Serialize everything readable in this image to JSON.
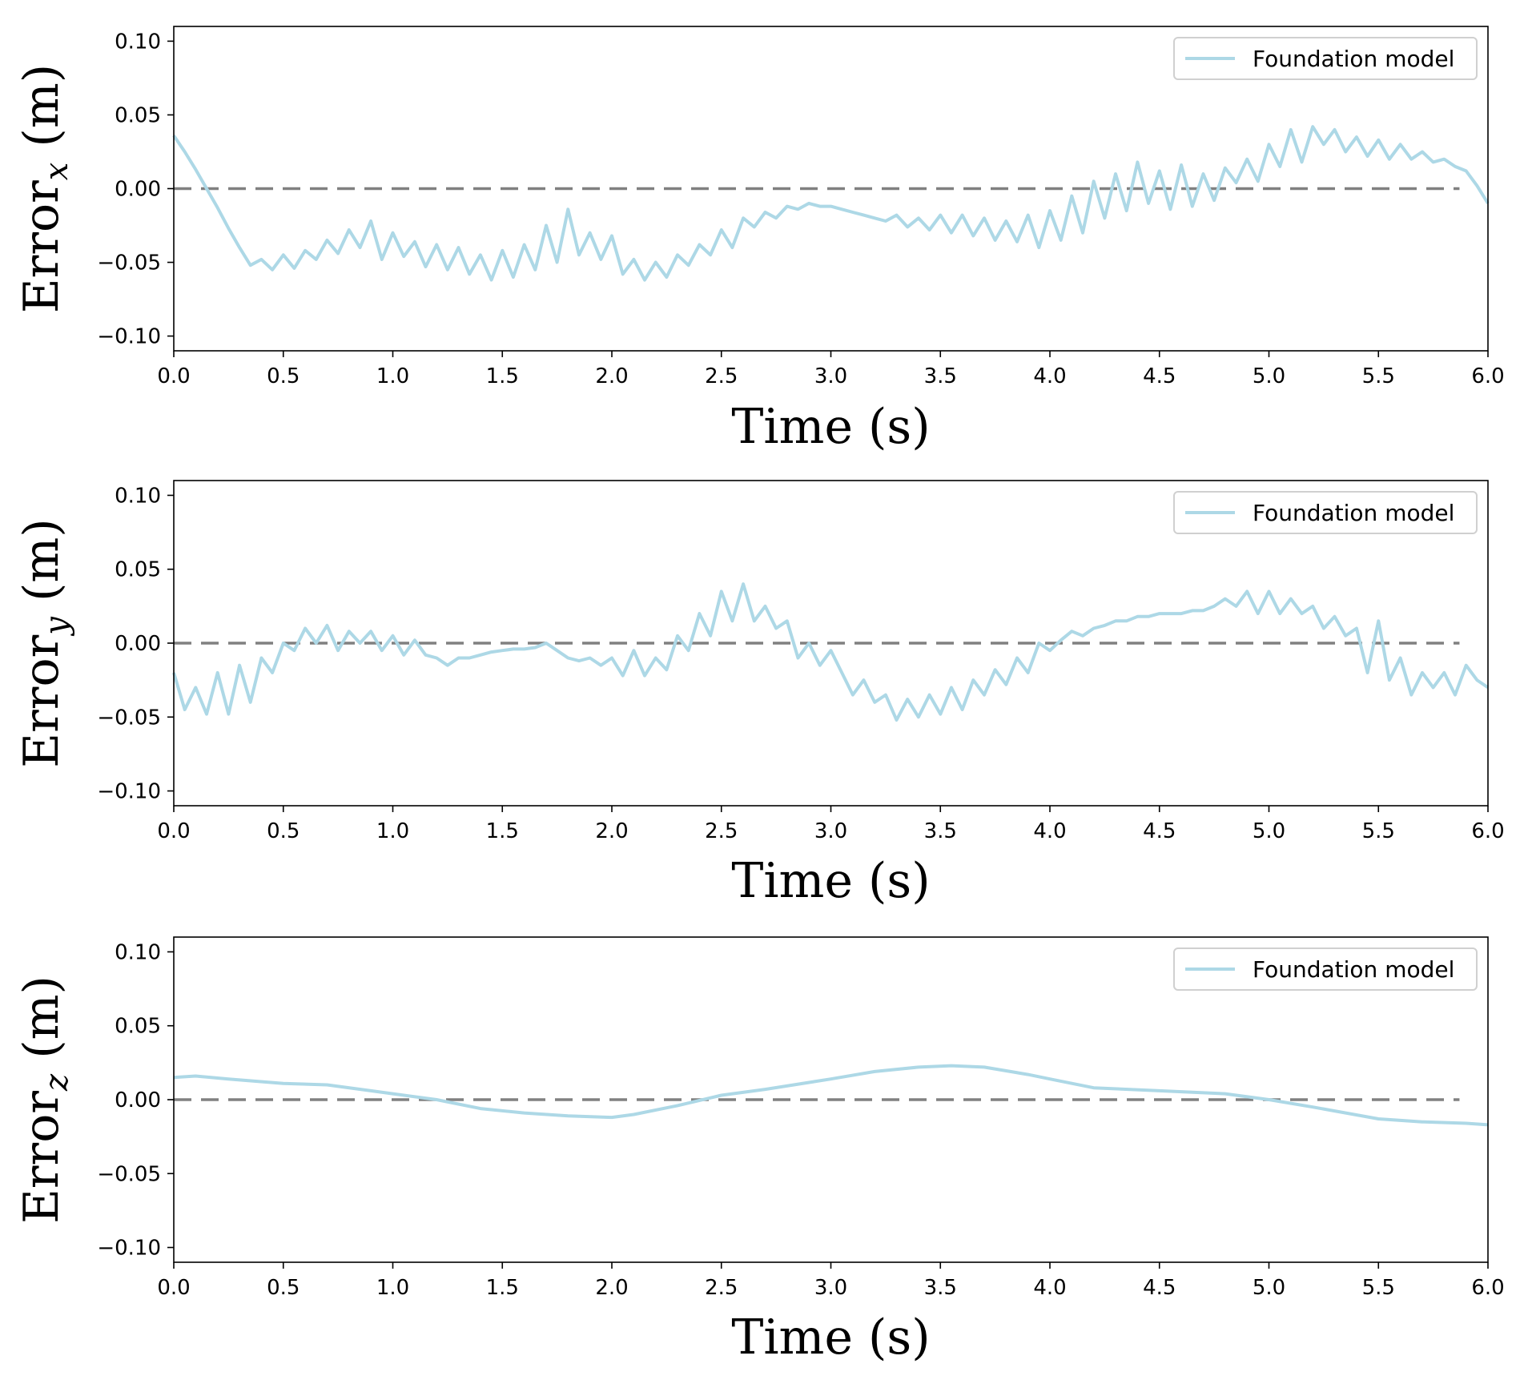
{
  "figure": {
    "colors": {
      "series": "#add8e6",
      "zero_line": "#808080",
      "axes": "#000000"
    }
  },
  "chart_data": [
    {
      "type": "line",
      "xlabel": "Time (s)",
      "ylabel_main": "Error",
      "ylabel_sub": "x",
      "ylabel_units": " (m)",
      "xlim": [
        0,
        6
      ],
      "ylim": [
        -0.11,
        0.11
      ],
      "xticks": [
        "0.0",
        "0.5",
        "1.0",
        "1.5",
        "2.0",
        "2.5",
        "3.0",
        "3.5",
        "4.0",
        "4.5",
        "5.0",
        "5.5",
        "6.0"
      ],
      "yticks": [
        "0.10",
        "0.05",
        "0.00",
        "−0.05",
        "−0.10"
      ],
      "ytick_values": [
        0.1,
        0.05,
        0.0,
        -0.05,
        -0.1
      ],
      "legend": {
        "label": "Foundation model",
        "position": "top-right"
      },
      "reference_line": {
        "y": 0.0,
        "style": "dashed"
      },
      "series": [
        {
          "name": "Foundation model",
          "x": [
            0.0,
            0.05,
            0.1,
            0.15,
            0.2,
            0.25,
            0.3,
            0.35,
            0.4,
            0.45,
            0.5,
            0.55,
            0.6,
            0.65,
            0.7,
            0.75,
            0.8,
            0.85,
            0.9,
            0.95,
            1.0,
            1.05,
            1.1,
            1.15,
            1.2,
            1.25,
            1.3,
            1.35,
            1.4,
            1.45,
            1.5,
            1.55,
            1.6,
            1.65,
            1.7,
            1.75,
            1.8,
            1.85,
            1.9,
            1.95,
            2.0,
            2.05,
            2.1,
            2.15,
            2.2,
            2.25,
            2.3,
            2.35,
            2.4,
            2.45,
            2.5,
            2.55,
            2.6,
            2.65,
            2.7,
            2.75,
            2.8,
            2.85,
            2.9,
            2.95,
            3.0,
            3.05,
            3.1,
            3.15,
            3.2,
            3.25,
            3.3,
            3.35,
            3.4,
            3.45,
            3.5,
            3.55,
            3.6,
            3.65,
            3.7,
            3.75,
            3.8,
            3.85,
            3.9,
            3.95,
            4.0,
            4.05,
            4.1,
            4.15,
            4.2,
            4.25,
            4.3,
            4.35,
            4.4,
            4.45,
            4.5,
            4.55,
            4.6,
            4.65,
            4.7,
            4.75,
            4.8,
            4.85,
            4.9,
            4.95,
            5.0,
            5.05,
            5.1,
            5.15,
            5.2,
            5.25,
            5.3,
            5.35,
            5.4,
            5.45,
            5.5,
            5.55,
            5.6,
            5.65,
            5.7,
            5.75,
            5.8,
            5.85,
            5.9,
            5.95,
            6.0
          ],
          "y": [
            0.036,
            0.025,
            0.013,
            0.0,
            -0.013,
            -0.027,
            -0.04,
            -0.052,
            -0.048,
            -0.055,
            -0.045,
            -0.054,
            -0.042,
            -0.048,
            -0.035,
            -0.044,
            -0.028,
            -0.04,
            -0.022,
            -0.048,
            -0.03,
            -0.046,
            -0.036,
            -0.053,
            -0.038,
            -0.055,
            -0.04,
            -0.058,
            -0.045,
            -0.062,
            -0.042,
            -0.06,
            -0.038,
            -0.055,
            -0.025,
            -0.05,
            -0.014,
            -0.045,
            -0.03,
            -0.048,
            -0.032,
            -0.058,
            -0.048,
            -0.062,
            -0.05,
            -0.06,
            -0.045,
            -0.052,
            -0.038,
            -0.045,
            -0.028,
            -0.04,
            -0.02,
            -0.026,
            -0.016,
            -0.02,
            -0.012,
            -0.014,
            -0.01,
            -0.012,
            -0.012,
            -0.014,
            -0.016,
            -0.018,
            -0.02,
            -0.022,
            -0.018,
            -0.026,
            -0.02,
            -0.028,
            -0.018,
            -0.03,
            -0.018,
            -0.032,
            -0.02,
            -0.035,
            -0.022,
            -0.036,
            -0.018,
            -0.04,
            -0.015,
            -0.035,
            -0.005,
            -0.03,
            0.005,
            -0.02,
            0.01,
            -0.015,
            0.018,
            -0.01,
            0.012,
            -0.014,
            0.016,
            -0.012,
            0.01,
            -0.008,
            0.014,
            0.004,
            0.02,
            0.005,
            0.03,
            0.015,
            0.04,
            0.018,
            0.042,
            0.03,
            0.04,
            0.025,
            0.035,
            0.022,
            0.033,
            0.02,
            0.03,
            0.02,
            0.025,
            0.018,
            0.02,
            0.015,
            0.012,
            0.002,
            -0.01
          ]
        }
      ]
    },
    {
      "type": "line",
      "xlabel": "Time (s)",
      "ylabel_main": "Error",
      "ylabel_sub": "y",
      "ylabel_units": " (m)",
      "xlim": [
        0,
        6
      ],
      "ylim": [
        -0.11,
        0.11
      ],
      "xticks": [
        "0.0",
        "0.5",
        "1.0",
        "1.5",
        "2.0",
        "2.5",
        "3.0",
        "3.5",
        "4.0",
        "4.5",
        "5.0",
        "5.5",
        "6.0"
      ],
      "yticks": [
        "0.10",
        "0.05",
        "0.00",
        "−0.05",
        "−0.10"
      ],
      "ytick_values": [
        0.1,
        0.05,
        0.0,
        -0.05,
        -0.1
      ],
      "legend": {
        "label": "Foundation model",
        "position": "top-right"
      },
      "reference_line": {
        "y": 0.0,
        "style": "dashed"
      },
      "series": [
        {
          "name": "Foundation model",
          "x": [
            0.0,
            0.05,
            0.1,
            0.15,
            0.2,
            0.25,
            0.3,
            0.35,
            0.4,
            0.45,
            0.5,
            0.55,
            0.6,
            0.65,
            0.7,
            0.75,
            0.8,
            0.85,
            0.9,
            0.95,
            1.0,
            1.05,
            1.1,
            1.15,
            1.2,
            1.25,
            1.3,
            1.35,
            1.4,
            1.45,
            1.5,
            1.55,
            1.6,
            1.65,
            1.7,
            1.75,
            1.8,
            1.85,
            1.9,
            1.95,
            2.0,
            2.05,
            2.1,
            2.15,
            2.2,
            2.25,
            2.3,
            2.35,
            2.4,
            2.45,
            2.5,
            2.55,
            2.6,
            2.65,
            2.7,
            2.75,
            2.8,
            2.85,
            2.9,
            2.95,
            3.0,
            3.05,
            3.1,
            3.15,
            3.2,
            3.25,
            3.3,
            3.35,
            3.4,
            3.45,
            3.5,
            3.55,
            3.6,
            3.65,
            3.7,
            3.75,
            3.8,
            3.85,
            3.9,
            3.95,
            4.0,
            4.05,
            4.1,
            4.15,
            4.2,
            4.25,
            4.3,
            4.35,
            4.4,
            4.45,
            4.5,
            4.55,
            4.6,
            4.65,
            4.7,
            4.75,
            4.8,
            4.85,
            4.9,
            4.95,
            5.0,
            5.05,
            5.1,
            5.15,
            5.2,
            5.25,
            5.3,
            5.35,
            5.4,
            5.45,
            5.5,
            5.55,
            5.6,
            5.65,
            5.7,
            5.75,
            5.8,
            5.85,
            5.9,
            5.95,
            6.0
          ],
          "y": [
            -0.02,
            -0.045,
            -0.03,
            -0.048,
            -0.02,
            -0.048,
            -0.015,
            -0.04,
            -0.01,
            -0.02,
            0.0,
            -0.005,
            0.01,
            0.0,
            0.012,
            -0.005,
            0.008,
            0.0,
            0.008,
            -0.005,
            0.005,
            -0.008,
            0.002,
            -0.008,
            -0.01,
            -0.015,
            -0.01,
            -0.01,
            -0.008,
            -0.006,
            -0.005,
            -0.004,
            -0.004,
            -0.003,
            0.0,
            -0.005,
            -0.01,
            -0.012,
            -0.01,
            -0.015,
            -0.01,
            -0.022,
            -0.005,
            -0.022,
            -0.01,
            -0.018,
            0.005,
            -0.005,
            0.02,
            0.005,
            0.035,
            0.015,
            0.04,
            0.015,
            0.025,
            0.01,
            0.015,
            -0.01,
            0.0,
            -0.015,
            -0.005,
            -0.02,
            -0.035,
            -0.025,
            -0.04,
            -0.035,
            -0.052,
            -0.038,
            -0.05,
            -0.035,
            -0.048,
            -0.03,
            -0.045,
            -0.025,
            -0.035,
            -0.018,
            -0.028,
            -0.01,
            -0.02,
            0.0,
            -0.005,
            0.002,
            0.008,
            0.005,
            0.01,
            0.012,
            0.015,
            0.015,
            0.018,
            0.018,
            0.02,
            0.02,
            0.02,
            0.022,
            0.022,
            0.025,
            0.03,
            0.025,
            0.035,
            0.02,
            0.035,
            0.02,
            0.03,
            0.02,
            0.025,
            0.01,
            0.018,
            0.005,
            0.01,
            -0.02,
            0.015,
            -0.025,
            -0.01,
            -0.035,
            -0.02,
            -0.03,
            -0.02,
            -0.035,
            -0.015,
            -0.025,
            -0.03
          ]
        }
      ]
    },
    {
      "type": "line",
      "xlabel": "Time (s)",
      "ylabel_main": "Error",
      "ylabel_sub": "z",
      "ylabel_units": " (m)",
      "xlim": [
        0,
        6
      ],
      "ylim": [
        -0.11,
        0.11
      ],
      "xticks": [
        "0.0",
        "0.5",
        "1.0",
        "1.5",
        "2.0",
        "2.5",
        "3.0",
        "3.5",
        "4.0",
        "4.5",
        "5.0",
        "5.5",
        "6.0"
      ],
      "yticks": [
        "0.10",
        "0.05",
        "0.00",
        "−0.05",
        "−0.10"
      ],
      "ytick_values": [
        0.1,
        0.05,
        0.0,
        -0.05,
        -0.1
      ],
      "legend": {
        "label": "Foundation model",
        "position": "top-right"
      },
      "reference_line": {
        "y": 0.0,
        "style": "dashed"
      },
      "series": [
        {
          "name": "Foundation model",
          "x": [
            0.0,
            0.1,
            0.25,
            0.5,
            0.7,
            0.9,
            1.0,
            1.2,
            1.4,
            1.6,
            1.8,
            2.0,
            2.1,
            2.3,
            2.5,
            2.7,
            3.0,
            3.2,
            3.4,
            3.55,
            3.7,
            3.9,
            4.0,
            4.2,
            4.5,
            4.8,
            5.0,
            5.2,
            5.5,
            5.7,
            5.9,
            6.0
          ],
          "y": [
            0.015,
            0.016,
            0.014,
            0.011,
            0.01,
            0.006,
            0.004,
            0.0,
            -0.006,
            -0.009,
            -0.011,
            -0.012,
            -0.01,
            -0.004,
            0.003,
            0.007,
            0.014,
            0.019,
            0.022,
            0.023,
            0.022,
            0.017,
            0.014,
            0.008,
            0.006,
            0.004,
            0.0,
            -0.005,
            -0.013,
            -0.015,
            -0.016,
            -0.017
          ]
        }
      ]
    }
  ]
}
